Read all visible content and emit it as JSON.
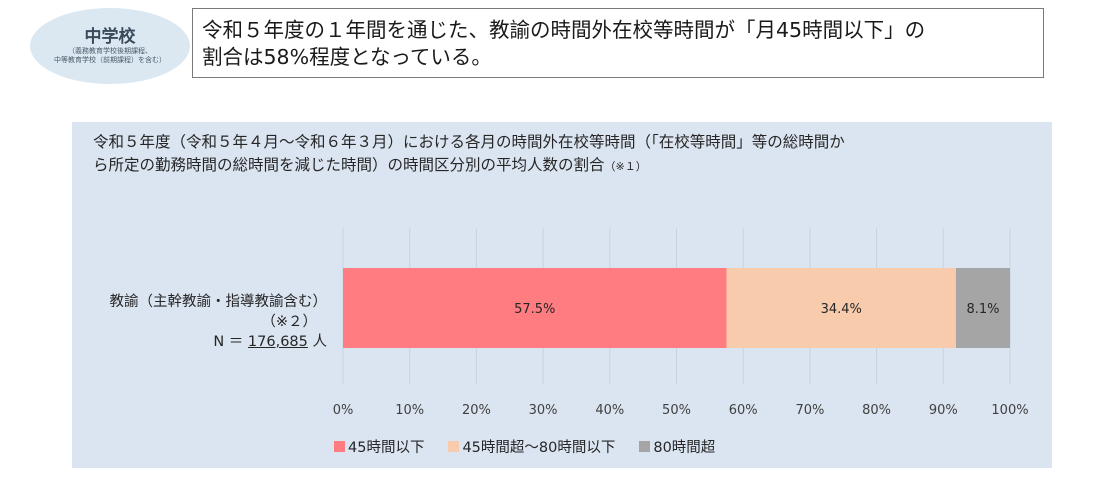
{
  "badge": {
    "title": "中学校",
    "note_line1": "（義務教育学校後期課程、",
    "note_line2": "中等教育学校（前期課程）を含む）"
  },
  "headline": {
    "line1": "令和５年度の１年間を通じた、教諭の時間外在校等時間が「月45時間以下」の",
    "line2": "割合は58%程度となっている。"
  },
  "chart_data": {
    "type": "bar",
    "orientation": "horizontal",
    "stacked": true,
    "title_line1": "令和５年度（令和５年４月～令和６年３月）における各月の時間外在校等時間（「在校等時間」等の総時間か",
    "title_line2": "ら所定の勤務時間の総時間を減じた時間）の時間区分別の平均人数の割合",
    "title_note": "（※１）",
    "categories": [
      "教諭（主幹教諭・指導教諭含む）"
    ],
    "category_note": "（※２）",
    "n_label": "N ＝",
    "n_value": "176,685",
    "n_unit": "人",
    "series": [
      {
        "name": "45時間以下",
        "values": [
          57.5
        ],
        "label": "57.5%",
        "color": "#ff7c80"
      },
      {
        "name": "45時間超～80時間以下",
        "values": [
          34.4
        ],
        "label": "34.4%",
        "color": "#f8cbad"
      },
      {
        "name": "80時間超",
        "values": [
          8.1
        ],
        "label": "8.1%",
        "color": "#a5a5a5"
      }
    ],
    "xlim": [
      0,
      100
    ],
    "ticks": [
      0,
      10,
      20,
      30,
      40,
      50,
      60,
      70,
      80,
      90,
      100
    ],
    "tick_labels": [
      "0%",
      "10%",
      "20%",
      "30%",
      "40%",
      "50%",
      "60%",
      "70%",
      "80%",
      "90%",
      "100%"
    ],
    "grid": true,
    "gridline_color": "#c9d3df",
    "legend_position": "bottom",
    "panel_color": "#dbe5f1"
  }
}
